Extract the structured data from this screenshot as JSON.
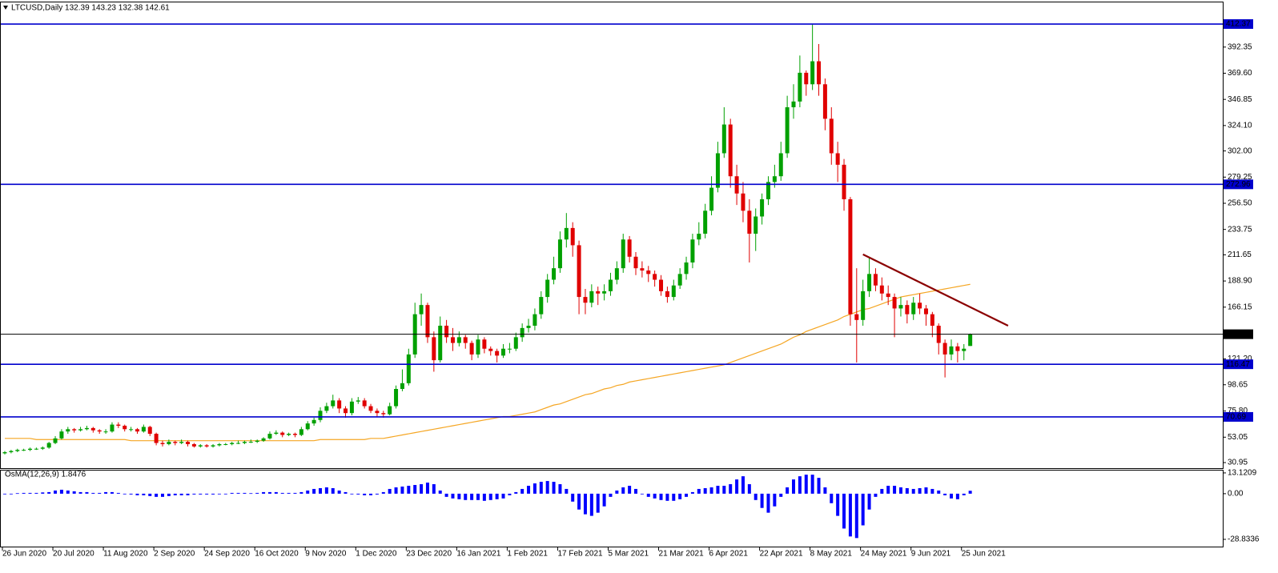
{
  "chart_data": [
    {
      "type": "candlestick",
      "title": "LTCUSD,Daily  132.39 143.23 132.38 142.61",
      "up_color": "#00a000",
      "down_color": "#e00000",
      "ylim": [
        26.1,
        431.2
      ],
      "yticks": [
        392.35,
        {
          "value": 369.6,
          "label": "369.60"
        },
        346.85,
        {
          "value": 324.1,
          "label": "324.10"
        },
        {
          "value": 302,
          "label": "302.00"
        },
        279.25,
        {
          "value": 256.5,
          "label": "256.50"
        },
        233.75,
        211.65,
        {
          "value": 188.9,
          "label": "188.90"
        },
        166.15,
        {
          "value": 121.2,
          "label": "121.20"
        },
        98.65,
        {
          "value": 75.8,
          "label": "75.80"
        },
        53.05,
        30.95
      ],
      "xticks": [
        {
          "value": 0,
          "label": "26 Jun 2020"
        },
        {
          "value": 8,
          "label": "20 Jul 2020"
        },
        {
          "value": 16,
          "label": "11 Aug 2020"
        },
        {
          "value": 24,
          "label": "2 Sep 2020"
        },
        {
          "value": 32,
          "label": "24 Sep 2020"
        },
        {
          "value": 40,
          "label": "16 Oct 2020"
        },
        {
          "value": 48,
          "label": "9 Nov 2020"
        },
        {
          "value": 56,
          "label": "1 Dec 2020"
        },
        {
          "value": 64,
          "label": "23 Dec 2020"
        },
        {
          "value": 72,
          "label": "16 Jan 2021"
        },
        {
          "value": 80,
          "label": "1 Feb 2021"
        },
        {
          "value": 88,
          "label": "17 Feb 2021"
        },
        {
          "value": 96,
          "label": "5 Mar 2021"
        },
        {
          "value": 104,
          "label": "21 Mar 2021"
        },
        {
          "value": 112,
          "label": "6 Apr 2021"
        },
        {
          "value": 120,
          "label": "22 Apr 2021"
        },
        {
          "value": 128,
          "label": "8 May 2021"
        },
        {
          "value": 136,
          "label": "24 May 2021"
        },
        {
          "value": 144,
          "label": "9 Jun 2021"
        },
        {
          "value": 152,
          "label": "25 Jun 2021"
        }
      ],
      "levels": [
        {
          "value": 412.37,
          "color": "#0000cd"
        },
        {
          "value": 272.96,
          "color": "#0000cd"
        },
        {
          "value": 116.47,
          "color": "#0000cd"
        },
        {
          "value": 70.69,
          "color": "#0000cd"
        },
        {
          "value": 142.61,
          "color": "#000000"
        }
      ],
      "trendline": {
        "x": [
          136,
          159
        ],
        "values": [
          212,
          150
        ],
        "color": "#8b0000"
      },
      "ma": {
        "color": "#f5a623",
        "values": [
          52,
          52,
          52,
          52,
          52,
          51,
          51,
          51,
          51,
          51,
          51,
          51,
          51,
          51,
          51,
          51,
          51,
          51,
          51,
          51,
          50,
          50,
          50,
          50,
          50,
          50,
          50,
          50,
          50,
          50,
          50,
          50,
          50,
          50,
          50,
          50,
          50,
          50,
          50,
          50,
          50,
          50,
          50,
          50,
          50,
          50,
          50,
          50,
          50,
          50,
          51,
          51,
          51,
          51,
          51,
          51,
          51,
          51,
          52,
          52,
          52,
          53,
          54,
          55,
          56,
          57,
          58,
          59,
          60,
          61,
          62,
          63,
          64,
          65,
          66,
          67,
          68,
          69,
          70,
          71,
          71,
          72,
          73,
          74,
          75,
          77,
          79,
          81,
          82,
          84,
          86,
          88,
          90,
          91,
          93,
          95,
          96,
          98,
          99,
          101,
          102,
          103,
          104,
          105,
          106,
          107,
          108,
          109,
          110,
          111,
          112,
          113,
          114,
          115,
          116,
          118,
          120,
          122,
          124,
          126,
          128,
          130,
          132,
          134,
          137,
          140,
          142,
          145,
          147,
          149,
          151,
          153,
          155,
          158,
          160,
          162,
          164,
          165,
          167,
          169,
          171,
          173,
          175,
          176,
          177,
          178,
          179,
          180,
          181,
          182,
          183,
          184,
          185,
          186
        ]
      },
      "candles": [
        [
          39,
          41,
          38,
          40
        ],
        [
          40,
          42,
          39,
          41
        ],
        [
          41,
          43,
          40,
          42
        ],
        [
          42,
          43,
          41,
          42
        ],
        [
          42,
          44,
          41,
          43
        ],
        [
          43,
          44,
          42,
          43
        ],
        [
          43,
          45,
          42,
          44
        ],
        [
          44,
          49,
          43,
          48
        ],
        [
          48,
          54,
          47,
          52
        ],
        [
          52,
          60,
          51,
          58
        ],
        [
          58,
          62,
          56,
          60
        ],
        [
          60,
          61,
          57,
          59
        ],
        [
          59,
          62,
          58,
          60
        ],
        [
          60,
          63,
          59,
          61
        ],
        [
          61,
          62,
          57,
          59
        ],
        [
          59,
          60,
          56,
          58
        ],
        [
          58,
          60,
          56,
          58
        ],
        [
          58,
          66,
          57,
          64
        ],
        [
          64,
          66,
          61,
          63
        ],
        [
          63,
          64,
          58,
          60
        ],
        [
          60,
          62,
          58,
          60
        ],
        [
          60,
          61,
          56,
          58
        ],
        [
          58,
          64,
          57,
          62
        ],
        [
          62,
          63,
          54,
          56
        ],
        [
          56,
          57,
          46,
          48
        ],
        [
          48,
          50,
          45,
          47
        ],
        [
          47,
          51,
          46,
          49
        ],
        [
          49,
          50,
          46,
          48
        ],
        [
          48,
          51,
          47,
          49
        ],
        [
          49,
          50,
          45,
          47
        ],
        [
          47,
          48,
          44,
          45
        ],
        [
          45,
          47,
          44,
          46
        ],
        [
          46,
          47,
          44,
          45
        ],
        [
          45,
          47,
          44,
          46
        ],
        [
          46,
          48,
          45,
          47
        ],
        [
          47,
          48,
          46,
          47
        ],
        [
          47,
          49,
          46,
          48
        ],
        [
          48,
          50,
          47,
          48
        ],
        [
          48,
          50,
          47,
          49
        ],
        [
          49,
          51,
          48,
          49
        ],
        [
          49,
          51,
          48,
          50
        ],
        [
          50,
          53,
          49,
          52
        ],
        [
          52,
          58,
          51,
          56
        ],
        [
          56,
          59,
          55,
          57
        ],
        [
          57,
          58,
          53,
          55
        ],
        [
          55,
          57,
          54,
          56
        ],
        [
          56,
          57,
          53,
          55
        ],
        [
          55,
          62,
          54,
          60
        ],
        [
          60,
          67,
          59,
          65
        ],
        [
          65,
          70,
          63,
          68
        ],
        [
          68,
          79,
          66,
          76
        ],
        [
          76,
          83,
          74,
          80
        ],
        [
          80,
          90,
          78,
          85
        ],
        [
          85,
          87,
          74,
          78
        ],
        [
          78,
          80,
          70,
          74
        ],
        [
          74,
          87,
          72,
          84
        ],
        [
          84,
          88,
          82,
          85
        ],
        [
          85,
          87,
          78,
          80
        ],
        [
          80,
          82,
          74,
          76
        ],
        [
          76,
          78,
          71,
          74
        ],
        [
          74,
          76,
          70,
          73
        ],
        [
          73,
          83,
          72,
          80
        ],
        [
          80,
          98,
          78,
          95
        ],
        [
          95,
          112,
          93,
          100
        ],
        [
          100,
          130,
          98,
          125
        ],
        [
          125,
          170,
          122,
          160
        ],
        [
          160,
          178,
          150,
          168
        ],
        [
          168,
          170,
          135,
          140
        ],
        [
          140,
          145,
          110,
          120
        ],
        [
          120,
          158,
          118,
          150
        ],
        [
          150,
          155,
          135,
          140
        ],
        [
          140,
          148,
          128,
          135
        ],
        [
          135,
          145,
          132,
          140
        ],
        [
          140,
          142,
          130,
          135
        ],
        [
          135,
          137,
          120,
          125
        ],
        [
          125,
          142,
          122,
          138
        ],
        [
          138,
          140,
          126,
          130
        ],
        [
          130,
          132,
          124,
          128
        ],
        [
          128,
          130,
          118,
          124
        ],
        [
          124,
          134,
          122,
          130
        ],
        [
          130,
          135,
          126,
          130
        ],
        [
          130,
          144,
          128,
          140
        ],
        [
          140,
          152,
          136,
          148
        ],
        [
          148,
          156,
          144,
          150
        ],
        [
          150,
          165,
          146,
          160
        ],
        [
          160,
          180,
          156,
          175
        ],
        [
          175,
          195,
          170,
          190
        ],
        [
          190,
          210,
          186,
          200
        ],
        [
          200,
          232,
          196,
          225
        ],
        [
          225,
          248,
          218,
          235
        ],
        [
          235,
          240,
          210,
          220
        ],
        [
          220,
          224,
          160,
          175
        ],
        [
          175,
          182,
          160,
          170
        ],
        [
          170,
          186,
          166,
          180
        ],
        [
          180,
          184,
          168,
          178
        ],
        [
          178,
          186,
          172,
          180
        ],
        [
          180,
          196,
          176,
          190
        ],
        [
          190,
          206,
          186,
          200
        ],
        [
          200,
          230,
          196,
          225
        ],
        [
          225,
          228,
          205,
          210
        ],
        [
          210,
          214,
          194,
          200
        ],
        [
          200,
          206,
          192,
          198
        ],
        [
          198,
          202,
          188,
          195
        ],
        [
          195,
          198,
          184,
          190
        ],
        [
          190,
          194,
          176,
          180
        ],
        [
          180,
          184,
          170,
          175
        ],
        [
          175,
          190,
          172,
          185
        ],
        [
          185,
          200,
          182,
          195
        ],
        [
          195,
          210,
          190,
          205
        ],
        [
          205,
          230,
          200,
          225
        ],
        [
          225,
          240,
          220,
          230
        ],
        [
          230,
          256,
          226,
          250
        ],
        [
          250,
          280,
          246,
          270
        ],
        [
          270,
          310,
          266,
          300
        ],
        [
          300,
          340,
          296,
          325
        ],
        [
          325,
          330,
          270,
          280
        ],
        [
          280,
          290,
          255,
          265
        ],
        [
          265,
          275,
          240,
          250
        ],
        [
          250,
          260,
          205,
          230
        ],
        [
          230,
          252,
          215,
          245
        ],
        [
          245,
          265,
          238,
          260
        ],
        [
          260,
          280,
          255,
          275
        ],
        [
          275,
          290,
          270,
          280
        ],
        [
          280,
          310,
          276,
          300
        ],
        [
          300,
          350,
          296,
          340
        ],
        [
          340,
          360,
          330,
          345
        ],
        [
          345,
          385,
          340,
          370
        ],
        [
          370,
          372,
          350,
          360
        ],
        [
          360,
          412,
          355,
          380
        ],
        [
          380,
          395,
          350,
          360
        ],
        [
          360,
          365,
          320,
          330
        ],
        [
          330,
          340,
          290,
          300
        ],
        [
          300,
          310,
          275,
          290
        ],
        [
          290,
          295,
          250,
          260
        ],
        [
          260,
          262,
          150,
          160
        ],
        [
          160,
          200,
          118,
          155
        ],
        [
          155,
          190,
          150,
          180
        ],
        [
          180,
          210,
          175,
          195
        ],
        [
          195,
          200,
          180,
          185
        ],
        [
          185,
          192,
          172,
          178
        ],
        [
          178,
          185,
          168,
          175
        ],
        [
          175,
          178,
          140,
          165
        ],
        [
          165,
          175,
          158,
          168
        ],
        [
          168,
          172,
          152,
          160
        ],
        [
          160,
          175,
          155,
          170
        ],
        [
          170,
          178,
          160,
          165
        ],
        [
          165,
          168,
          150,
          160
        ],
        [
          160,
          162,
          140,
          150
        ],
        [
          150,
          152,
          125,
          135
        ],
        [
          135,
          138,
          105,
          125
        ],
        [
          125,
          138,
          120,
          132
        ],
        [
          132,
          135,
          118,
          128
        ],
        [
          128,
          134,
          120,
          130
        ],
        [
          132.39,
          143.23,
          132.38,
          142.61
        ]
      ]
    },
    {
      "type": "bar",
      "title": "OsMA(12,26,9) 1.8476",
      "color": "#0000ff",
      "ylim": [
        -33.4,
        14.6
      ],
      "yticks": [
        13.1209,
        {
          "value": 0,
          "label": "0.00"
        },
        -28.8336
      ],
      "values": [
        0,
        0,
        0.3,
        0.5,
        0.5,
        0.5,
        0.8,
        1,
        2,
        2.5,
        2,
        1.5,
        1,
        1,
        0.5,
        0.5,
        1,
        1,
        0.5,
        0,
        -0.5,
        -1,
        -1,
        -1.5,
        -2,
        -2,
        -1.5,
        -1,
        -1,
        -1,
        -0.5,
        -0.5,
        -0.5,
        -0.5,
        0,
        0,
        0.5,
        0.5,
        0.5,
        0.3,
        0.5,
        1,
        1,
        1,
        0.5,
        0.5,
        0.5,
        1,
        2,
        3,
        3.5,
        4,
        3.5,
        2,
        1,
        0,
        -0.5,
        -1,
        -1,
        -0.5,
        1,
        3,
        4,
        4.5,
        5,
        5.5,
        6,
        7,
        6,
        2,
        -2,
        -3,
        -3.5,
        -4,
        -4,
        -4,
        -4.5,
        -4,
        -3.5,
        -3,
        -1,
        1,
        3,
        5,
        6.5,
        7.5,
        8,
        7.5,
        6,
        3,
        -5,
        -10,
        -13,
        -14,
        -12,
        -8,
        -2,
        2,
        4,
        5,
        3,
        0,
        -2,
        -3,
        -4,
        -4.5,
        -4.5,
        -3.5,
        -2,
        1,
        3,
        3.5,
        4,
        5,
        5,
        6,
        9,
        11,
        6,
        -4,
        -9,
        -12,
        -8,
        -2,
        4,
        9,
        11,
        12,
        12,
        10,
        4,
        -6,
        -14,
        -22,
        -27,
        -28,
        -20,
        -10,
        -2,
        3,
        5,
        5,
        4,
        3.5,
        3,
        3.5,
        4,
        3,
        2,
        -1,
        -3,
        -3.5,
        -1,
        1.8476
      ]
    }
  ]
}
